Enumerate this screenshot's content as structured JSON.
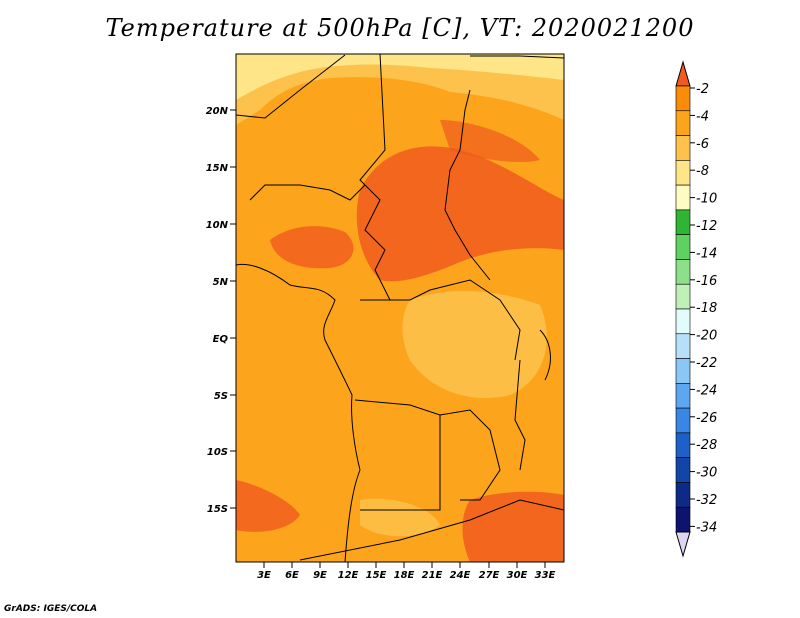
{
  "title": "Temperature at 500hPa [C], VT: 2020021200",
  "credit": "GrADS: IGES/COLA",
  "map": {
    "lat_labels": [
      "20N",
      "15N",
      "10N",
      "5N",
      "EQ",
      "5S",
      "10S",
      "15S"
    ],
    "lon_labels": [
      "3E",
      "6E",
      "9E",
      "12E",
      "15E",
      "18E",
      "21E",
      "24E",
      "27E",
      "30E",
      "33E"
    ]
  },
  "colorbar": {
    "labels": [
      "-2",
      "-4",
      "-6",
      "-8",
      "-10",
      "-12",
      "-14",
      "-16",
      "-18",
      "-20",
      "-22",
      "-24",
      "-26",
      "-28",
      "-30",
      "-32",
      "-34"
    ],
    "colors": [
      "#f05a1e",
      "#fa8c0a",
      "#fca51c",
      "#fdc24c",
      "#fee587",
      "#fffbc4",
      "#2fb434",
      "#5ed160",
      "#8ce08a",
      "#bff0b8",
      "#e4fbfb",
      "#b5e0f8",
      "#8cc6f4",
      "#5ea6ef",
      "#3a86e4",
      "#1f5fc8",
      "#1345a8",
      "#0d2b86",
      "#0c1470",
      "#dcd8f4"
    ]
  }
}
